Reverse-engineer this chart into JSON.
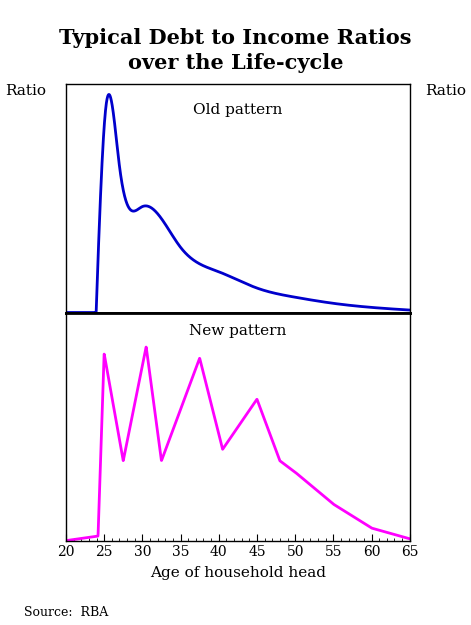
{
  "title": "Typical Debt to Income Ratios\nover the Life-cycle",
  "title_fontsize": 15,
  "ylabel_left": "Ratio",
  "ylabel_right": "Ratio",
  "xlabel": "Age of household head",
  "source": "Source:  RBA",
  "x_min": 20,
  "x_max": 65,
  "x_ticks": [
    20,
    25,
    30,
    35,
    40,
    45,
    50,
    55,
    60,
    65
  ],
  "old_label": "Old pattern",
  "new_label": "New pattern",
  "old_color": "#0000CC",
  "new_color": "#FF00FF",
  "line_width": 2.0,
  "background_color": "#FFFFFF",
  "old_points_x": [
    20,
    24.0,
    25.2,
    27,
    30,
    35,
    40,
    45,
    50,
    55,
    60,
    65
  ],
  "old_points_y": [
    0.0,
    0.05,
    1.0,
    0.72,
    0.52,
    0.32,
    0.2,
    0.12,
    0.075,
    0.045,
    0.025,
    0.012
  ],
  "new_points_x": [
    20,
    24.2,
    25.0,
    27.5,
    30.5,
    32.5,
    37.5,
    40.5,
    45.0,
    48.0,
    50.0,
    55.0,
    60.0,
    65.0
  ],
  "new_points_y": [
    0.0,
    0.02,
    0.82,
    0.35,
    0.85,
    0.35,
    0.8,
    0.4,
    0.62,
    0.35,
    0.3,
    0.16,
    0.055,
    0.008
  ]
}
